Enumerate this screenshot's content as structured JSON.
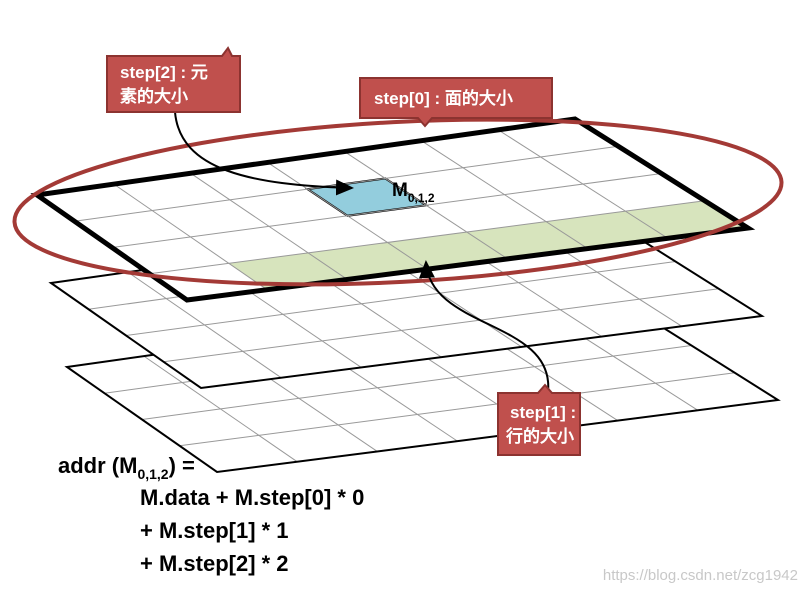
{
  "callouts": [
    {
      "lines": [
        "step[2] : 元",
        "素的大小"
      ]
    },
    {
      "lines": [
        "step[0] : 面的大小"
      ]
    },
    {
      "lines": [
        "step[1] :",
        "行的大小"
      ]
    }
  ],
  "cell_label": {
    "main": "M",
    "subscript": "0,1,2"
  },
  "formula": {
    "lhs_prefix": "addr (M",
    "lhs_subscript": "0,1,2",
    "lhs_suffix": ") =",
    "lines": [
      "M.data + M.step[0] * 0",
      "+ M.step[1] * 1",
      "+ M.step[2] * 2"
    ]
  },
  "watermark": "https://blog.csdn.net/zcg1942"
}
